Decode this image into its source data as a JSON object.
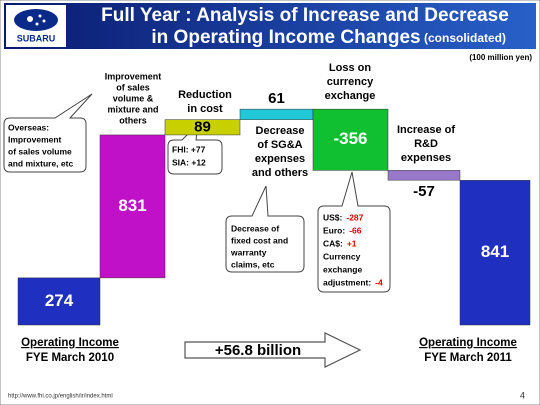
{
  "chart_data": {
    "type": "waterfall",
    "title": [
      "Full Year : Analysis of Increase and Decrease",
      "in Operating Income Changes"
    ],
    "subtitle": "(consolidated)",
    "logo": "SUBARU",
    "unit_note": "(100 million yen)",
    "categories": [
      [
        "Operating Income",
        "FYE March 2010"
      ],
      [
        "Improvement",
        "of sales",
        "volume &",
        "mixture and",
        "others"
      ],
      [
        "Reduction",
        "in cost"
      ],
      [
        "Decrease",
        "of SG&A",
        "expenses",
        "and others"
      ],
      [
        "Loss on",
        "currency",
        "exchange"
      ],
      [
        "Increase of",
        "R&D",
        "expenses"
      ],
      [
        "Operating  Income",
        "FYE March 2011"
      ]
    ],
    "values": [
      274,
      831,
      89,
      61,
      -356,
      -57,
      841
    ],
    "colors": [
      "#1f2fc0",
      "#c010c8",
      "#c8d000",
      "#20c8d8",
      "#10c030",
      "#9878c8",
      "#1f2fc0"
    ],
    "annotations": {
      "overseas": [
        "Overseas:",
        "Improvement",
        "of sales volume",
        "and mixture, etc"
      ],
      "cost": [
        "FHI: +77",
        "SIA: +12"
      ],
      "sga": [
        "Decrease of",
        "fixed cost and",
        "warranty",
        "claims, etc"
      ],
      "currency": [
        {
          "text": "US$:",
          "value": "-287"
        },
        {
          "text": "Euro:",
          "value": "-66"
        },
        {
          "text": "CA$:",
          "value": "+1"
        },
        {
          "text": "Currency"
        },
        {
          "text": "exchange"
        },
        {
          "text": "adjustment:",
          "value": "-4"
        }
      ],
      "change": "+56.8 billion"
    },
    "footer_url": "http://www.fhi.co.jp/english/ir/index.html",
    "page_number": "4"
  }
}
